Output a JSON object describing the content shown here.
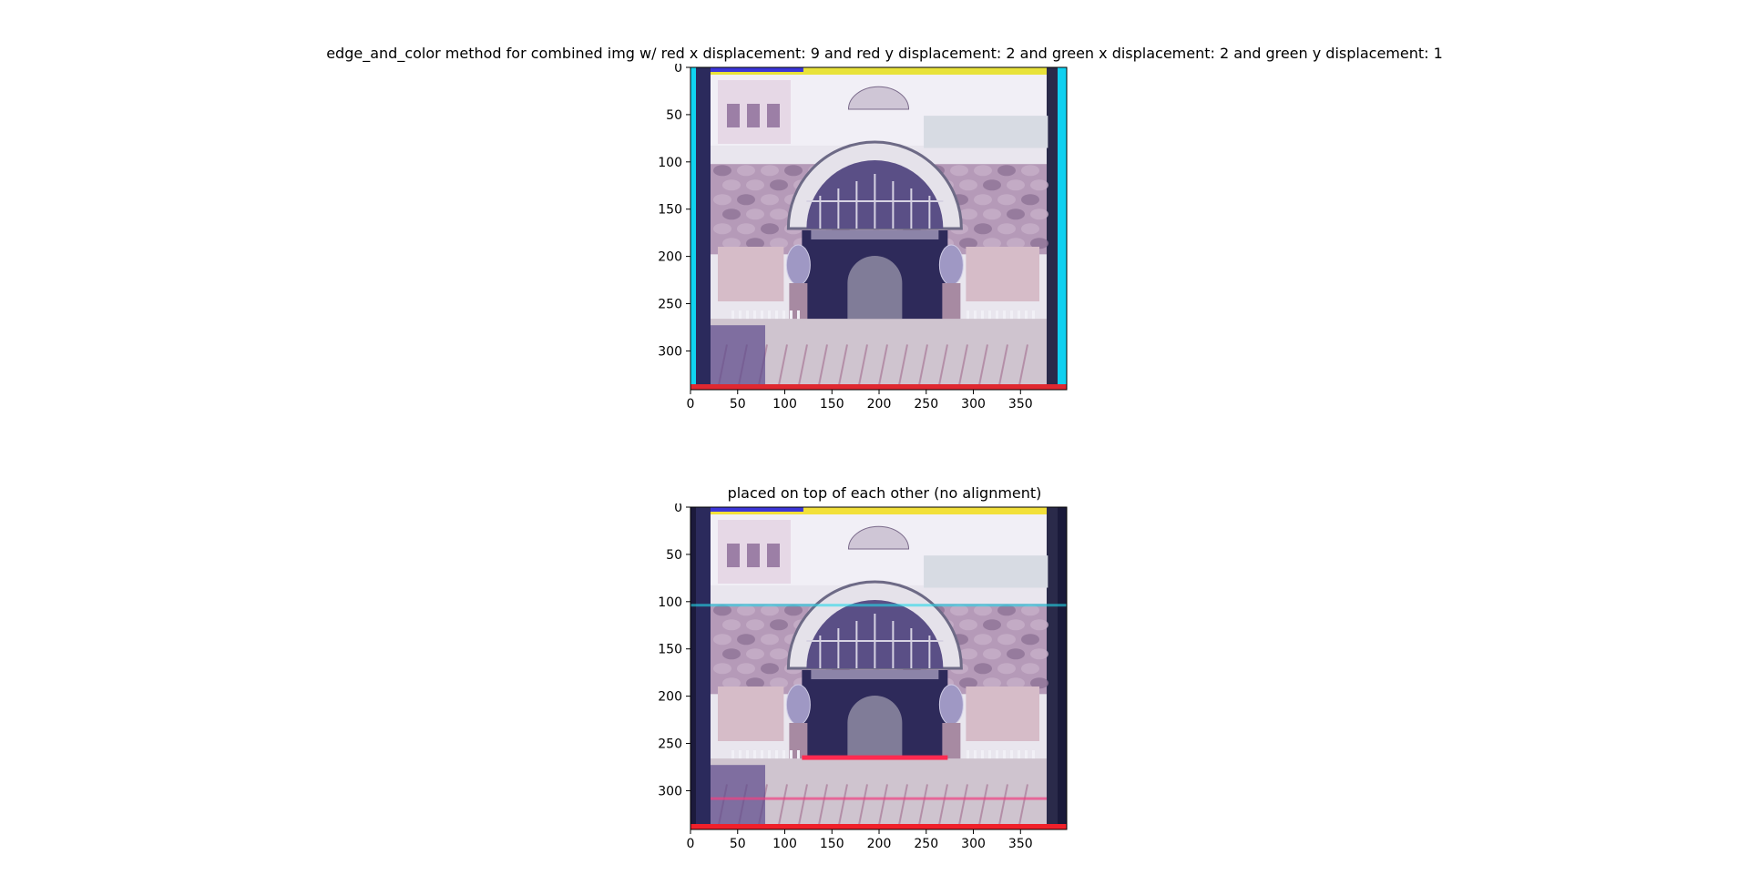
{
  "figure": {
    "panels": [
      {
        "title": "edge_and_color method for combined img w/ red x displacement: 9 and red y displacement: 2 and green x displacement: 2 and green y displacement: 1",
        "image_description_icon": "aligned-rgb-photo-icon"
      },
      {
        "title": "placed on top of each other (no alignment)",
        "image_description_icon": "unaligned-rgb-photo-icon"
      }
    ]
  },
  "chart_data": [
    {
      "type": "image",
      "title": "edge_and_color method for combined img w/ red x displacement: 9 and red y displacement: 2 and green x displacement: 2 and green y displacement: 1",
      "xlim": [
        0,
        399
      ],
      "ylim": [
        341,
        0
      ],
      "xticks": [
        0,
        50,
        100,
        150,
        200,
        250,
        300,
        350
      ],
      "yticks": [
        0,
        50,
        100,
        150,
        200,
        250,
        300
      ],
      "xtick_labels": [
        "0",
        "50",
        "100",
        "150",
        "200",
        "250",
        "300",
        "350"
      ],
      "ytick_labels": [
        "0",
        "50",
        "100",
        "150",
        "200",
        "250",
        "300"
      ],
      "alignment": {
        "red_x": 9,
        "red_y": 2,
        "green_x": 2,
        "green_y": 1
      }
    },
    {
      "type": "image",
      "title": "placed on top of each other (no alignment)",
      "xlim": [
        0,
        399
      ],
      "ylim": [
        341,
        0
      ],
      "xticks": [
        0,
        50,
        100,
        150,
        200,
        250,
        300,
        350
      ],
      "yticks": [
        0,
        50,
        100,
        150,
        200,
        250,
        300
      ],
      "xtick_labels": [
        "0",
        "50",
        "100",
        "150",
        "200",
        "250",
        "300",
        "350"
      ],
      "ytick_labels": [
        "0",
        "50",
        "100",
        "150",
        "200",
        "250",
        "300"
      ]
    }
  ]
}
